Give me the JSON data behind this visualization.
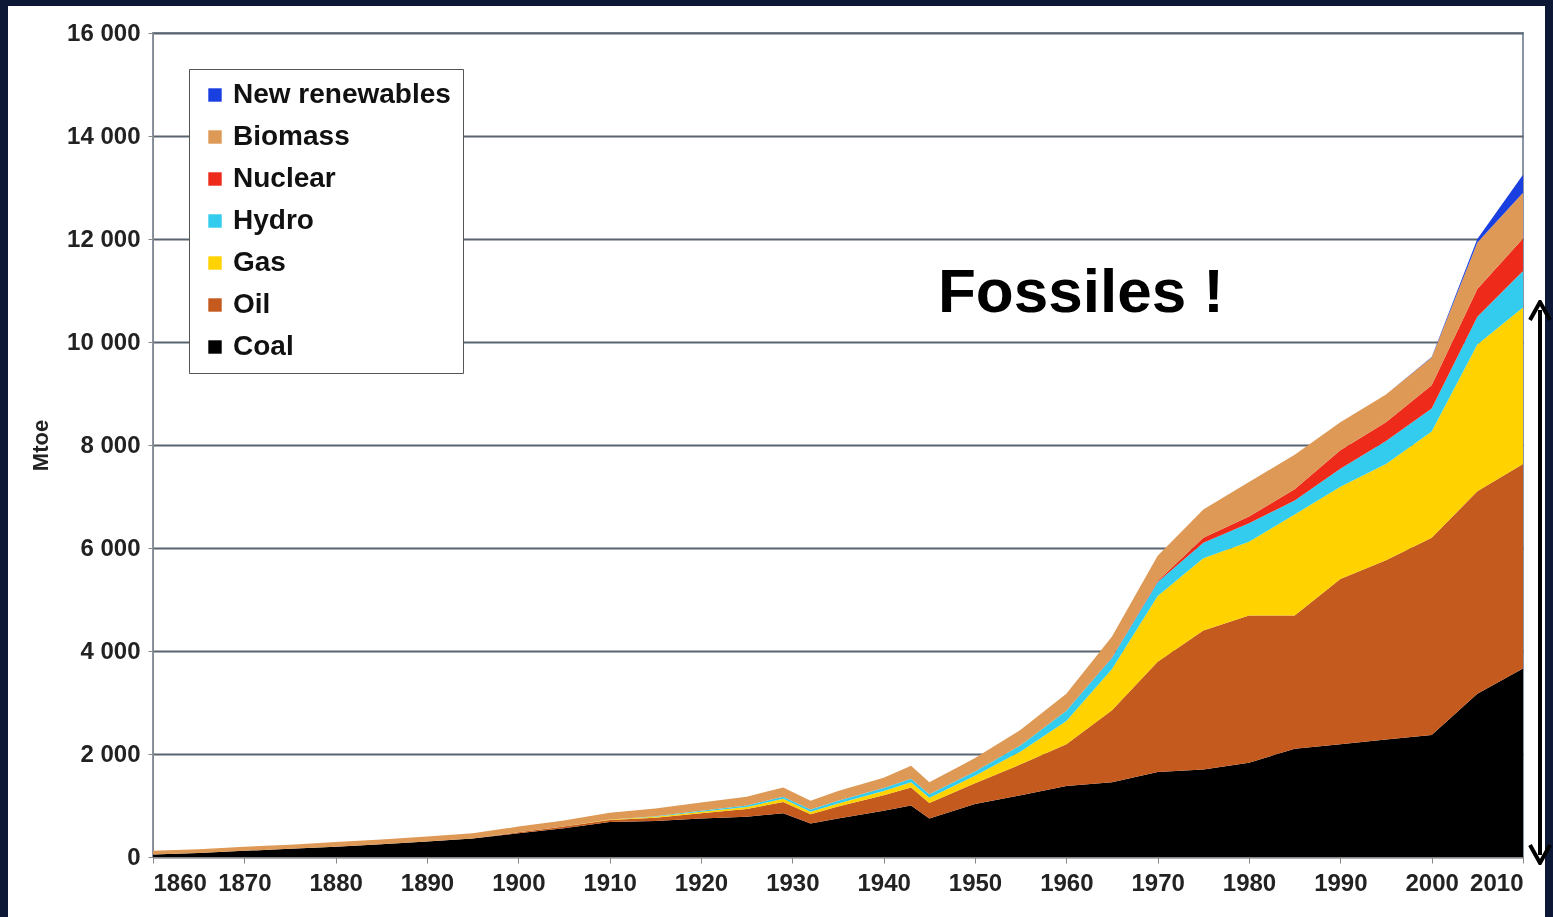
{
  "chart_data": {
    "type": "area",
    "stacked": true,
    "ylabel": "Mtoe",
    "annotations": [
      "Fossiles !"
    ],
    "grid": "y",
    "legend": "top left",
    "x": [
      1860,
      1865,
      1870,
      1875,
      1880,
      1885,
      1890,
      1895,
      1900,
      1905,
      1910,
      1915,
      1920,
      1925,
      1929,
      1932,
      1935,
      1940,
      1943,
      1945,
      1950,
      1955,
      1960,
      1965,
      1970,
      1975,
      1980,
      1985,
      1990,
      1995,
      2000,
      2005,
      2010
    ],
    "xlim": [
      1860,
      2010
    ],
    "xticks": [
      1860,
      1870,
      1880,
      1890,
      1900,
      1910,
      1920,
      1930,
      1940,
      1950,
      1960,
      1970,
      1980,
      1990,
      2000,
      2010
    ],
    "ylim": [
      0,
      16000
    ],
    "yticks": [
      {
        "value": 0,
        "label": "0"
      },
      {
        "value": 2000,
        "label": "2 000"
      },
      {
        "value": 4000,
        "label": "4 000"
      },
      {
        "value": 6000,
        "label": "6 000"
      },
      {
        "value": 8000,
        "label": "8 000"
      },
      {
        "value": 10000,
        "label": "10 000"
      },
      {
        "value": 12000,
        "label": "12 000"
      },
      {
        "value": 14000,
        "label": "14 000"
      },
      {
        "value": 16000,
        "label": "16 000"
      }
    ],
    "series": [
      {
        "name": "Coal",
        "color": "#000000",
        "values": [
          50,
          80,
          120,
          160,
          200,
          250,
          300,
          360,
          460,
          560,
          680,
          700,
          750,
          780,
          850,
          650,
          750,
          900,
          1000,
          750,
          1030,
          1200,
          1380,
          1450,
          1650,
          1700,
          1830,
          2100,
          2190,
          2280,
          2370,
          3170,
          3660
        ]
      },
      {
        "name": "Oil",
        "color": "#c55a1f",
        "values": [
          0,
          0,
          0,
          0,
          0,
          0,
          0,
          0,
          20,
          30,
          40,
          60,
          100,
          150,
          220,
          180,
          230,
          300,
          350,
          300,
          400,
          600,
          810,
          1400,
          2140,
          2700,
          2860,
          2590,
          3210,
          3480,
          3830,
          3930,
          3970
        ]
      },
      {
        "name": "Gas",
        "color": "#ffd200",
        "values": [
          0,
          0,
          0,
          0,
          0,
          0,
          0,
          0,
          0,
          0,
          10,
          20,
          30,
          40,
          60,
          50,
          60,
          80,
          100,
          100,
          150,
          250,
          450,
          800,
          1280,
          1400,
          1430,
          1960,
          1790,
          1870,
          2060,
          2850,
          3040
        ]
      },
      {
        "name": "Hydro",
        "color": "#33ccee",
        "values": [
          0,
          0,
          0,
          0,
          0,
          0,
          0,
          0,
          0,
          0,
          0,
          10,
          20,
          30,
          40,
          40,
          50,
          60,
          70,
          70,
          80,
          120,
          200,
          220,
          270,
          300,
          360,
          270,
          350,
          450,
          450,
          540,
          710
        ]
      },
      {
        "name": "Nuclear",
        "color": "#ee2a1a",
        "values": [
          0,
          0,
          0,
          0,
          0,
          0,
          0,
          0,
          0,
          0,
          0,
          0,
          0,
          0,
          0,
          0,
          0,
          0,
          0,
          0,
          0,
          0,
          0,
          10,
          20,
          100,
          130,
          220,
          360,
          360,
          450,
          540,
          630
        ]
      },
      {
        "name": "Biomass",
        "color": "#dd9955",
        "values": [
          70,
          70,
          80,
          80,
          90,
          90,
          100,
          100,
          110,
          120,
          130,
          150,
          160,
          170,
          180,
          170,
          190,
          200,
          250,
          230,
          260,
          300,
          330,
          400,
          490,
          550,
          670,
          670,
          540,
          540,
          540,
          900,
          890
        ]
      },
      {
        "name": "New renewables",
        "color": "#1a3fe0",
        "values": [
          0,
          0,
          0,
          0,
          0,
          0,
          0,
          0,
          0,
          0,
          0,
          0,
          0,
          0,
          0,
          0,
          0,
          0,
          0,
          0,
          0,
          0,
          0,
          0,
          0,
          0,
          0,
          0,
          0,
          0,
          10,
          70,
          350
        ]
      }
    ]
  }
}
